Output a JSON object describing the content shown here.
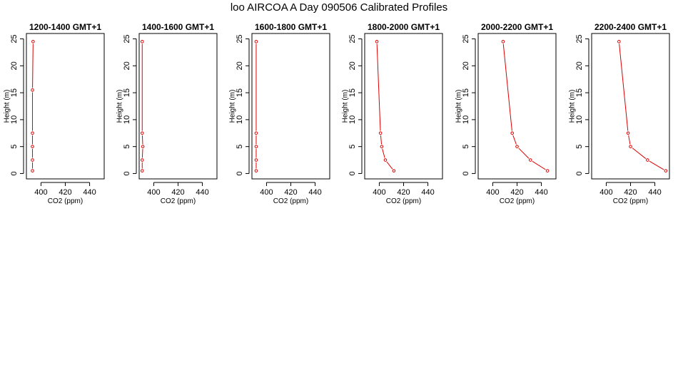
{
  "figure": {
    "title": "loo AIRCOA A  Day 090506  Calibrated Profiles",
    "line_color": "#dd0000",
    "axis_color": "#000000"
  },
  "chart_data": [
    {
      "type": "line",
      "title": "1200-1400 GMT+1",
      "xlabel": "CO2 (ppm)",
      "ylabel": "Height (m)",
      "xlim": [
        388,
        452
      ],
      "ylim": [
        -1,
        26
      ],
      "xticks": [
        400,
        420,
        440
      ],
      "yticks": [
        0,
        5,
        10,
        15,
        20,
        25
      ],
      "series": [
        {
          "x": [
            393,
            393,
            393,
            393,
            393,
            393.5
          ],
          "y": [
            0.5,
            2.5,
            5,
            7.5,
            15.5,
            24.5
          ]
        }
      ]
    },
    {
      "type": "line",
      "title": "1400-1600 GMT+1",
      "xlabel": "CO2 (ppm)",
      "ylabel": "Height (m)",
      "xlim": [
        388,
        452
      ],
      "ylim": [
        -1,
        26
      ],
      "xticks": [
        400,
        420,
        440
      ],
      "yticks": [
        0,
        5,
        10,
        15,
        20,
        25
      ],
      "series": [
        {
          "x": [
            390.5,
            390.5,
            391,
            390.5,
            390.5
          ],
          "y": [
            0.5,
            2.5,
            5,
            7.5,
            24.5
          ]
        }
      ]
    },
    {
      "type": "line",
      "title": "1600-1800 GMT+1",
      "xlabel": "CO2 (ppm)",
      "ylabel": "Height (m)",
      "xlim": [
        388,
        452
      ],
      "ylim": [
        -1,
        26
      ],
      "xticks": [
        400,
        420,
        440
      ],
      "yticks": [
        0,
        5,
        10,
        15,
        20,
        25
      ],
      "series": [
        {
          "x": [
            391.5,
            391.5,
            391.5,
            391.5,
            391.5
          ],
          "y": [
            0.5,
            2.5,
            5,
            7.5,
            24.5
          ]
        }
      ]
    },
    {
      "type": "line",
      "title": "1800-2000 GMT+1",
      "xlabel": "CO2 (ppm)",
      "ylabel": "Height (m)",
      "xlim": [
        388,
        452
      ],
      "ylim": [
        -1,
        26
      ],
      "xticks": [
        400,
        420,
        440
      ],
      "yticks": [
        0,
        5,
        10,
        15,
        20,
        25
      ],
      "series": [
        {
          "x": [
            412,
            405,
            402,
            401,
            398
          ],
          "y": [
            0.5,
            2.5,
            5,
            7.5,
            24.5
          ]
        }
      ]
    },
    {
      "type": "line",
      "title": "2000-2200 GMT+1",
      "xlabel": "CO2 (ppm)",
      "ylabel": "Height (m)",
      "xlim": [
        388,
        452
      ],
      "ylim": [
        -1,
        26
      ],
      "xticks": [
        400,
        420,
        440
      ],
      "yticks": [
        0,
        5,
        10,
        15,
        20,
        25
      ],
      "series": [
        {
          "x": [
            445,
            431,
            420,
            416,
            408.5
          ],
          "y": [
            0.5,
            2.5,
            5,
            7.5,
            24.5
          ]
        }
      ]
    },
    {
      "type": "line",
      "title": "2200-2400 GMT+1",
      "xlabel": "CO2 (ppm)",
      "ylabel": "Height (m)",
      "xlim": [
        388,
        452
      ],
      "ylim": [
        -1,
        26
      ],
      "xticks": [
        400,
        420,
        440
      ],
      "yticks": [
        0,
        5,
        10,
        15,
        20,
        25
      ],
      "series": [
        {
          "x": [
            449,
            434,
            420,
            418,
            410.5
          ],
          "y": [
            0.5,
            2.5,
            5,
            7.5,
            24.5
          ]
        }
      ]
    }
  ]
}
